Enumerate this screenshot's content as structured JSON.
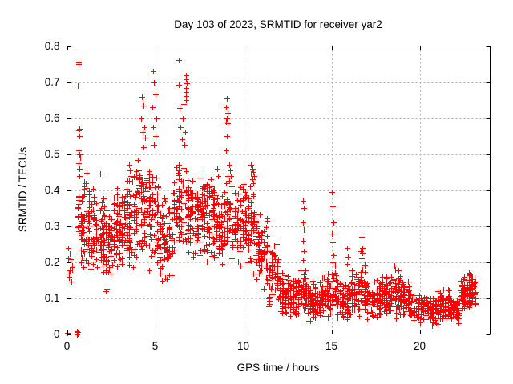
{
  "chart_data": {
    "type": "scatter",
    "title": "Day 103 of 2023, SRMTID for receiver yar2",
    "xlabel": "GPS time / hours",
    "ylabel": "SRMTID / TECUs",
    "xlim": [
      0,
      24
    ],
    "ylim": [
      0,
      0.8
    ],
    "xticks": {
      "values": [
        0,
        5,
        10,
        15,
        20
      ],
      "labels": [
        "0",
        "5",
        "10",
        "15",
        "20"
      ]
    },
    "yticks": {
      "values": [
        0,
        0.1,
        0.2,
        0.3,
        0.4,
        0.5,
        0.6,
        0.7,
        0.8
      ],
      "labels": [
        "0",
        "0.1",
        "0.2",
        "0.3",
        "0.4",
        "0.5",
        "0.6",
        "0.7",
        "0.8"
      ]
    },
    "grid": "dashed",
    "grid_color": "#ababab",
    "legend": "none",
    "marker": {
      "shape": "plus",
      "color": "#ff0000",
      "size": 7
    },
    "series": [
      {
        "name": "SRMTID",
        "points": [
          [
            0.02,
            0.004
          ],
          [
            0.55,
            0.002
          ],
          [
            0.58,
            0.005
          ],
          [
            0.6,
            0.002
          ],
          [
            0.57,
            0.0
          ],
          [
            0.59,
            0.007
          ],
          [
            0.61,
            0.005
          ],
          [
            0.05,
            0.21
          ],
          [
            0.07,
            0.24
          ],
          [
            0.1,
            0.16
          ],
          [
            0.65,
            0.755
          ],
          [
            0.68,
            0.75
          ],
          [
            0.63,
            0.69
          ],
          [
            0.7,
            0.57
          ],
          [
            0.68,
            0.565
          ],
          [
            0.72,
            0.55
          ],
          [
            0.66,
            0.51
          ],
          [
            0.7,
            0.5
          ],
          [
            0.73,
            0.49
          ],
          [
            0.65,
            0.475
          ],
          [
            0.69,
            0.46
          ],
          [
            0.71,
            0.44
          ],
          [
            1.9,
            0.445
          ],
          [
            2.2,
            0.12
          ],
          [
            2.25,
            0.125
          ],
          [
            3.5,
            0.47
          ],
          [
            3.55,
            0.455
          ],
          [
            3.6,
            0.44
          ],
          [
            3.5,
            0.425
          ],
          [
            4.25,
            0.66
          ],
          [
            4.3,
            0.645
          ],
          [
            4.35,
            0.635
          ],
          [
            4.2,
            0.6
          ],
          [
            4.4,
            0.575
          ],
          [
            4.3,
            0.56
          ],
          [
            4.45,
            0.545
          ],
          [
            4.35,
            0.52
          ],
          [
            4.9,
            0.73
          ],
          [
            4.95,
            0.7
          ],
          [
            5.0,
            0.665
          ],
          [
            4.85,
            0.63
          ],
          [
            5.05,
            0.6
          ],
          [
            4.9,
            0.575
          ],
          [
            5.0,
            0.55
          ],
          [
            4.95,
            0.525
          ],
          [
            6.36,
            0.762
          ],
          [
            6.36,
            0.693
          ],
          [
            6.77,
            0.718
          ],
          [
            6.75,
            0.707
          ],
          [
            6.78,
            0.696
          ],
          [
            6.76,
            0.684
          ],
          [
            6.74,
            0.673
          ],
          [
            6.77,
            0.662
          ],
          [
            6.75,
            0.651
          ],
          [
            6.6,
            0.638
          ],
          [
            6.4,
            0.628
          ],
          [
            6.55,
            0.6
          ],
          [
            6.45,
            0.575
          ],
          [
            6.7,
            0.56
          ],
          [
            6.5,
            0.54
          ],
          [
            6.65,
            0.525
          ],
          [
            8.5,
            0.46
          ],
          [
            8.55,
            0.44
          ],
          [
            9.05,
            0.655
          ],
          [
            9.0,
            0.63
          ],
          [
            9.1,
            0.615
          ],
          [
            9.05,
            0.6
          ],
          [
            9.0,
            0.59
          ],
          [
            9.1,
            0.585
          ],
          [
            9.05,
            0.55
          ],
          [
            9.0,
            0.51
          ],
          [
            9.0,
            0.42
          ],
          [
            9.1,
            0.44
          ],
          [
            9.2,
            0.47
          ],
          [
            9.25,
            0.455
          ],
          [
            9.3,
            0.44
          ],
          [
            9.2,
            0.425
          ],
          [
            9.35,
            0.41
          ],
          [
            10.45,
            0.47
          ],
          [
            10.5,
            0.46
          ],
          [
            10.55,
            0.45
          ],
          [
            10.45,
            0.445
          ],
          [
            10.6,
            0.44
          ],
          [
            10.5,
            0.43
          ],
          [
            10.55,
            0.42
          ],
          [
            10.4,
            0.41
          ],
          [
            13.4,
            0.37
          ],
          [
            13.42,
            0.35
          ],
          [
            13.38,
            0.31
          ],
          [
            13.45,
            0.29
          ],
          [
            13.4,
            0.26
          ],
          [
            13.43,
            0.23
          ],
          [
            13.4,
            0.205
          ],
          [
            15.0,
            0.395
          ],
          [
            15.05,
            0.355
          ],
          [
            15.1,
            0.31
          ],
          [
            15.0,
            0.28
          ],
          [
            15.08,
            0.255
          ],
          [
            15.12,
            0.22
          ],
          [
            15.05,
            0.2
          ],
          [
            15.9,
            0.24
          ],
          [
            15.95,
            0.215
          ],
          [
            15.88,
            0.195
          ],
          [
            16.72,
            0.27
          ],
          [
            16.7,
            0.245
          ],
          [
            16.75,
            0.24
          ],
          [
            16.68,
            0.23
          ],
          [
            16.73,
            0.225
          ],
          [
            16.7,
            0.21
          ],
          [
            18.55,
            0.19
          ],
          [
            18.6,
            0.18
          ],
          [
            19.35,
            0.145
          ],
          [
            21.0,
            0.12
          ],
          [
            22.8,
            0.17
          ],
          [
            22.85,
            0.165
          ]
        ],
        "bands_comment": "dense cloud envelopes read from plot: [xStart,xEnd,yMin,yMax,count]",
        "bands": [
          [
            0.1,
            0.35,
            0.13,
            0.245,
            10
          ],
          [
            0.55,
            0.9,
            0.19,
            0.43,
            30
          ],
          [
            0.9,
            1.3,
            0.18,
            0.46,
            48
          ],
          [
            1.3,
            2.0,
            0.16,
            0.41,
            70
          ],
          [
            2.0,
            2.6,
            0.135,
            0.38,
            70
          ],
          [
            2.6,
            3.2,
            0.17,
            0.42,
            72
          ],
          [
            3.2,
            4.0,
            0.18,
            0.46,
            85
          ],
          [
            4.0,
            4.6,
            0.21,
            0.5,
            62
          ],
          [
            4.6,
            5.2,
            0.16,
            0.5,
            62
          ],
          [
            5.2,
            6.0,
            0.13,
            0.4,
            78
          ],
          [
            6.0,
            6.8,
            0.22,
            0.5,
            70
          ],
          [
            6.8,
            7.6,
            0.2,
            0.46,
            88
          ],
          [
            7.6,
            8.4,
            0.2,
            0.44,
            88
          ],
          [
            8.4,
            9.0,
            0.19,
            0.42,
            70
          ],
          [
            9.0,
            9.3,
            0.24,
            0.42,
            26
          ],
          [
            9.3,
            10.2,
            0.18,
            0.42,
            82
          ],
          [
            10.2,
            10.8,
            0.15,
            0.42,
            56
          ],
          [
            10.8,
            11.4,
            0.115,
            0.345,
            56
          ],
          [
            11.4,
            12.0,
            0.07,
            0.26,
            56
          ],
          [
            12.0,
            12.6,
            0.05,
            0.175,
            64
          ],
          [
            12.6,
            13.2,
            0.04,
            0.16,
            64
          ],
          [
            13.2,
            13.6,
            0.05,
            0.19,
            40
          ],
          [
            13.6,
            14.4,
            0.03,
            0.15,
            72
          ],
          [
            14.4,
            15.0,
            0.04,
            0.17,
            60
          ],
          [
            15.0,
            15.3,
            0.07,
            0.21,
            26
          ],
          [
            15.3,
            16.1,
            0.03,
            0.15,
            72
          ],
          [
            16.1,
            16.6,
            0.04,
            0.18,
            50
          ],
          [
            16.6,
            16.95,
            0.06,
            0.2,
            40
          ],
          [
            16.95,
            17.8,
            0.03,
            0.16,
            76
          ],
          [
            17.8,
            18.3,
            0.04,
            0.17,
            55
          ],
          [
            18.3,
            19.0,
            0.04,
            0.185,
            65
          ],
          [
            19.0,
            19.6,
            0.03,
            0.15,
            55
          ],
          [
            19.6,
            20.4,
            0.025,
            0.115,
            66
          ],
          [
            20.4,
            21.1,
            0.02,
            0.115,
            62
          ],
          [
            21.1,
            21.7,
            0.03,
            0.13,
            56
          ],
          [
            21.7,
            22.3,
            0.03,
            0.1,
            62
          ],
          [
            22.3,
            22.9,
            0.055,
            0.165,
            72
          ],
          [
            22.9,
            23.2,
            0.075,
            0.17,
            36
          ]
        ]
      }
    ]
  }
}
